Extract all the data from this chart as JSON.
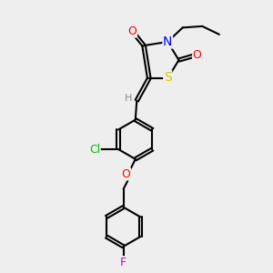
{
  "bg_color": "#eeeeee",
  "bond_color": "#000000",
  "bond_width": 1.5,
  "atom_colors": {
    "O": "#ff0000",
    "N": "#0000ff",
    "S": "#cccc00",
    "Cl": "#00bb00",
    "F": "#cc00cc",
    "H": "#888888",
    "C": "#000000"
  },
  "font_size": 9,
  "fig_size": [
    3.0,
    3.0
  ],
  "dpi": 100
}
